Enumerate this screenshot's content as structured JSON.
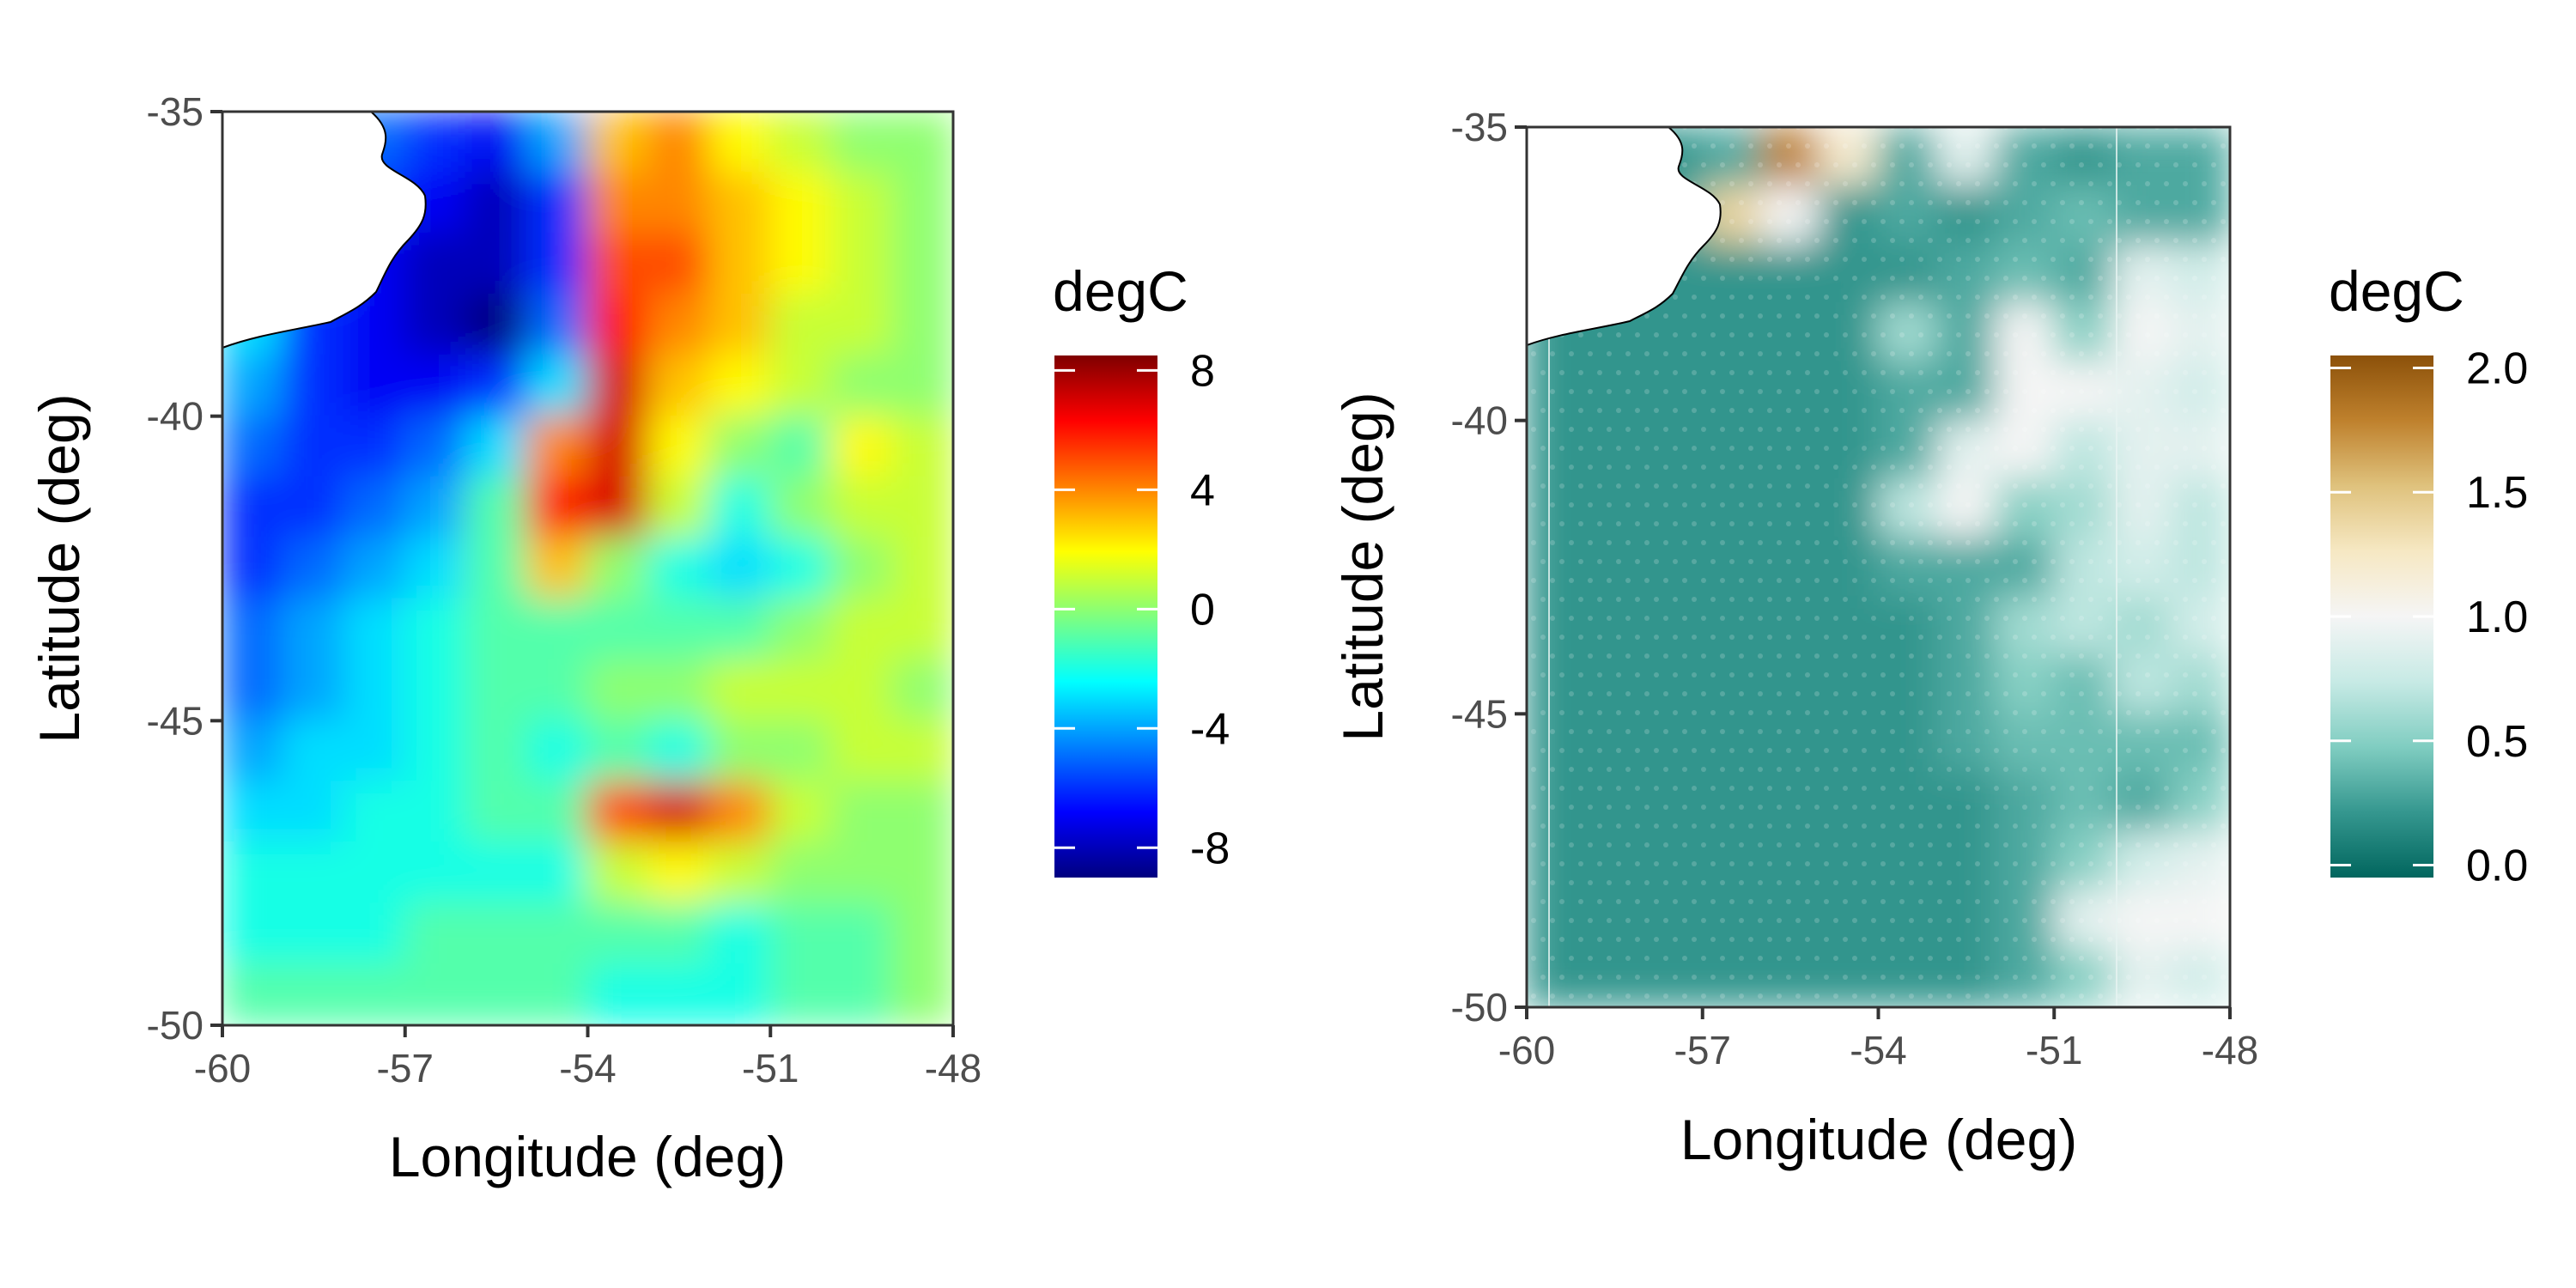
{
  "chart_data": [
    {
      "type": "heatmap",
      "xlabel": "Longitude (deg)",
      "ylabel": "Latitude (deg)",
      "xlim": [
        -60,
        -48
      ],
      "ylim": [
        -50,
        -35
      ],
      "x_ticks": [
        "-60",
        "-57",
        "-54",
        "-51",
        "-48"
      ],
      "y_ticks": [
        "-35",
        "-40",
        "-45",
        "-50"
      ],
      "x_tick_values": [
        -60,
        -57,
        -54,
        -51,
        -48
      ],
      "y_tick_values": [
        -35,
        -40,
        -45,
        -50
      ],
      "legend": {
        "title": "degC",
        "min": -9,
        "max": 8.5,
        "labels": [
          "8",
          "4",
          "0",
          "-4",
          "-8"
        ],
        "label_values": [
          8,
          4,
          0,
          -4,
          -8
        ],
        "colormap": [
          "#00007f",
          "#0000ff",
          "#007fff",
          "#00ffff",
          "#7fff7f",
          "#ffff00",
          "#ff7f00",
          "#ff0000",
          "#7f0000"
        ]
      },
      "field": [
        [
          -2,
          -3,
          -5,
          -6,
          -7,
          -4,
          3,
          4,
          2,
          1,
          0,
          0
        ],
        [
          -2,
          -4,
          -6,
          -7,
          -8,
          -6,
          4,
          4,
          3,
          2,
          1,
          0
        ],
        [
          -3,
          -5,
          -7,
          -8,
          -8,
          -6,
          5,
          5,
          3,
          2,
          1,
          0
        ],
        [
          -3,
          -6,
          -7,
          -8,
          -9,
          -5,
          6,
          4,
          3,
          1,
          1,
          0
        ],
        [
          -4,
          -6,
          -7,
          -7,
          -6,
          -3,
          7,
          3,
          2,
          1,
          0,
          0
        ],
        [
          -5,
          -6,
          -6,
          -5,
          -3,
          4,
          7,
          2,
          0,
          -1,
          2,
          1
        ],
        [
          -6,
          -6,
          -5,
          -4,
          -1,
          6,
          7,
          1,
          -2,
          0,
          1,
          1
        ],
        [
          -6,
          -5,
          -4,
          -3,
          -1,
          3,
          0,
          -2,
          -3,
          -2,
          0,
          1
        ],
        [
          -5,
          -4,
          -3,
          -2,
          -1,
          -1,
          -1,
          -1,
          -1,
          0,
          1,
          1
        ],
        [
          -5,
          -4,
          -3,
          -2,
          -1,
          -1,
          0,
          0,
          1,
          1,
          1,
          0
        ],
        [
          -4,
          -3,
          -3,
          -2,
          -1,
          -2,
          -1,
          -2,
          0,
          0,
          1,
          1
        ],
        [
          -3,
          -3,
          -2,
          -2,
          -1,
          -1,
          5,
          7,
          4,
          1,
          0,
          0
        ],
        [
          -2,
          -2,
          -2,
          -2,
          -2,
          -2,
          1,
          2,
          1,
          0,
          0,
          0
        ],
        [
          -2,
          -2,
          -2,
          -1,
          -1,
          -1,
          -1,
          -1,
          -2,
          -1,
          -1,
          0
        ],
        [
          -1,
          -1,
          -1,
          -1,
          -1,
          -1,
          -2,
          -2,
          -2,
          -1,
          -1,
          0
        ]
      ]
    },
    {
      "type": "heatmap",
      "xlabel": "Longitude (deg)",
      "ylabel": "Latitude (deg)",
      "xlim": [
        -60,
        -48
      ],
      "ylim": [
        -50,
        -35
      ],
      "x_ticks": [
        "-60",
        "-57",
        "-54",
        "-51",
        "-48"
      ],
      "y_ticks": [
        "-35",
        "-40",
        "-45",
        "-50"
      ],
      "x_tick_values": [
        -60,
        -57,
        -54,
        -51,
        -48
      ],
      "y_tick_values": [
        -35,
        -40,
        -45,
        -50
      ],
      "legend": {
        "title": "degC",
        "min": -0.05,
        "max": 2.05,
        "labels": [
          "2.0",
          "1.5",
          "1.0",
          "0.5",
          "0.0"
        ],
        "label_values": [
          2.0,
          1.5,
          1.0,
          0.5,
          0.0
        ],
        "colormap": [
          "#01665e",
          "#35978f",
          "#80cdc1",
          "#c7eae5",
          "#f5f5f5",
          "#f6e8c3",
          "#dfc27d",
          "#bf812d",
          "#8c510a"
        ]
      },
      "field": [
        [
          0.2,
          0.2,
          0.2,
          0.3,
          1.8,
          1.2,
          0.3,
          0.9,
          0.3,
          0.2,
          0.3,
          0.3
        ],
        [
          0.2,
          0.2,
          0.3,
          1.4,
          1.0,
          0.2,
          0.3,
          0.2,
          0.3,
          0.4,
          0.3,
          0.3
        ],
        [
          0.2,
          0.2,
          0.2,
          0.2,
          0.2,
          0.2,
          0.2,
          0.3,
          0.4,
          0.3,
          0.9,
          0.8
        ],
        [
          0.2,
          0.2,
          0.2,
          0.2,
          0.2,
          0.2,
          0.6,
          0.3,
          1.0,
          0.5,
          1.0,
          0.9
        ],
        [
          0.2,
          0.2,
          0.2,
          0.2,
          0.2,
          0.2,
          0.3,
          0.3,
          1.0,
          1.0,
          0.9,
          0.8
        ],
        [
          0.2,
          0.2,
          0.2,
          0.2,
          0.2,
          0.2,
          0.3,
          0.9,
          1.0,
          0.7,
          0.9,
          0.9
        ],
        [
          0.2,
          0.2,
          0.2,
          0.2,
          0.2,
          0.2,
          0.7,
          1.0,
          0.5,
          0.6,
          0.9,
          0.7
        ],
        [
          0.2,
          0.2,
          0.2,
          0.2,
          0.2,
          0.2,
          0.3,
          0.3,
          0.3,
          0.7,
          0.8,
          0.7
        ],
        [
          0.2,
          0.2,
          0.2,
          0.2,
          0.2,
          0.2,
          0.2,
          0.3,
          0.6,
          0.7,
          0.6,
          0.8
        ],
        [
          0.2,
          0.2,
          0.2,
          0.2,
          0.2,
          0.2,
          0.2,
          0.3,
          0.5,
          0.4,
          0.7,
          0.6
        ],
        [
          0.2,
          0.2,
          0.2,
          0.2,
          0.2,
          0.2,
          0.2,
          0.3,
          0.4,
          0.4,
          0.4,
          0.4
        ],
        [
          0.2,
          0.2,
          0.2,
          0.2,
          0.2,
          0.2,
          0.2,
          0.2,
          0.3,
          0.4,
          0.3,
          0.5
        ],
        [
          0.2,
          0.2,
          0.2,
          0.2,
          0.2,
          0.2,
          0.2,
          0.2,
          0.3,
          0.5,
          0.8,
          0.9
        ],
        [
          0.2,
          0.2,
          0.2,
          0.2,
          0.2,
          0.2,
          0.2,
          0.2,
          0.3,
          0.9,
          1.0,
          1.0
        ],
        [
          0.2,
          0.2,
          0.2,
          0.2,
          0.2,
          0.2,
          0.2,
          0.2,
          0.3,
          0.5,
          0.9,
          0.8
        ]
      ]
    }
  ]
}
